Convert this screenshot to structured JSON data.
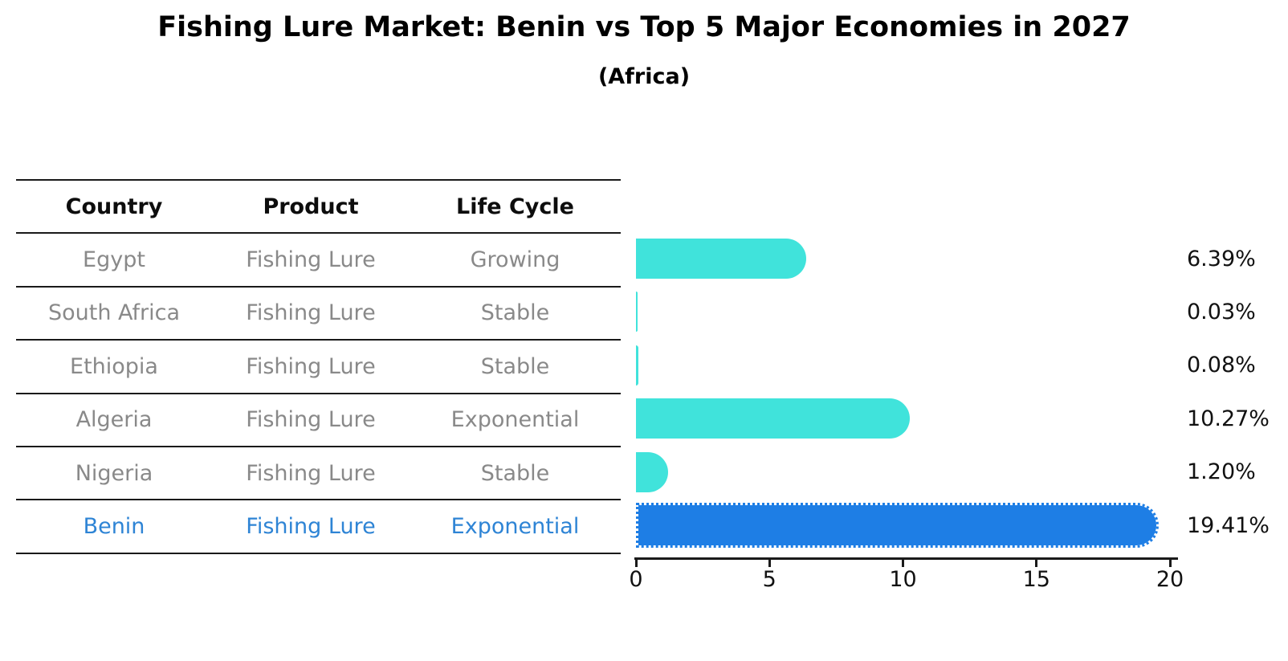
{
  "title": "Fishing Lure Market: Benin vs Top 5 Major Economies in 2027",
  "subtitle": "(Africa)",
  "table": {
    "headers": [
      "Country",
      "Product",
      "Life Cycle"
    ],
    "rows": [
      {
        "country": "Egypt",
        "product": "Fishing Lure",
        "life_cycle": "Growing",
        "highlight": false
      },
      {
        "country": "South Africa",
        "product": "Fishing Lure",
        "life_cycle": "Stable",
        "highlight": false
      },
      {
        "country": "Ethiopia",
        "product": "Fishing Lure",
        "life_cycle": "Stable",
        "highlight": false
      },
      {
        "country": "Algeria",
        "product": "Fishing Lure",
        "life_cycle": "Exponential",
        "highlight": false
      },
      {
        "country": "Nigeria",
        "product": "Fishing Lure",
        "life_cycle": "Stable",
        "highlight": false
      },
      {
        "country": "Benin",
        "product": "Fishing Lure",
        "life_cycle": "Exponential",
        "highlight": true
      }
    ]
  },
  "chart_data": {
    "type": "bar",
    "orientation": "horizontal",
    "title": "Fishing Lure Market: Benin vs Top 5 Major Economies in 2027",
    "subtitle": "(Africa)",
    "categories": [
      "Egypt",
      "South Africa",
      "Ethiopia",
      "Algeria",
      "Nigeria",
      "Benin"
    ],
    "values": [
      6.39,
      0.03,
      0.08,
      10.27,
      1.2,
      19.41
    ],
    "value_labels": [
      "6.39%",
      "0.03%",
      "0.08%",
      "10.27%",
      "1.20%",
      "19.41%"
    ],
    "highlight_category": "Benin",
    "x_ticks": [
      "0",
      "5",
      "10",
      "15",
      "20"
    ],
    "x_tick_values": [
      0,
      5,
      10,
      15,
      20
    ],
    "xlim": [
      0,
      20
    ],
    "grid": false,
    "legend": false,
    "colors": {
      "bar": "#40E3DB",
      "highlight_bar": "#1E7EE5",
      "table_text": "#898989",
      "highlight_text": "#2E84D5",
      "value_label_text": "#111111",
      "line": "#1a1a1a"
    }
  }
}
